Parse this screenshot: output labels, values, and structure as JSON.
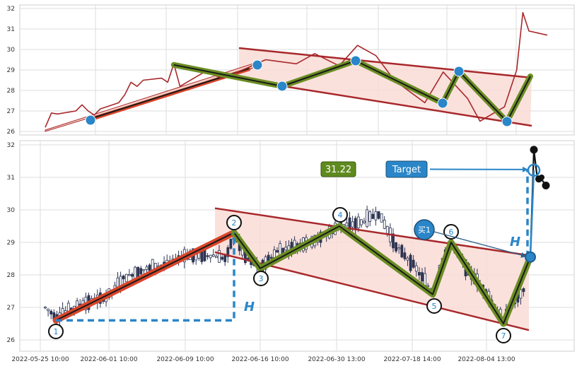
{
  "chart_data": [
    {
      "type": "line",
      "panel": "overview",
      "ylim": [
        26,
        32
      ],
      "y_ticks": [
        "26",
        "27",
        "28",
        "29",
        "30",
        "31",
        "32"
      ],
      "grid": true,
      "series": [
        {
          "role": "close-price",
          "color": "#a8282b",
          "points": [
            [
              "2022-05-25 10:00",
              26.2
            ],
            [
              "2022-05-26",
              26.9
            ],
            [
              "2022-05-27",
              26.85
            ],
            [
              "2022-05-30",
              27.0
            ],
            [
              "2022-05-31",
              27.3
            ],
            [
              "2022-06-01",
              27.0
            ],
            [
              "2022-06-02",
              26.8
            ],
            [
              "2022-06-03",
              27.1
            ],
            [
              "2022-06-06",
              27.4
            ],
            [
              "2022-06-07",
              27.8
            ],
            [
              "2022-06-08",
              28.4
            ],
            [
              "2022-06-09",
              28.2
            ],
            [
              "2022-06-10",
              28.5
            ],
            [
              "2022-06-13",
              28.6
            ],
            [
              "2022-06-14",
              28.4
            ],
            [
              "2022-06-15",
              29.3
            ],
            [
              "2022-06-16",
              28.2
            ],
            [
              "2022-06-20",
              28.9
            ],
            [
              "2022-06-23",
              28.6
            ],
            [
              "2022-06-27",
              29.1
            ],
            [
              "2022-06-30",
              29.5
            ],
            [
              "2022-07-05",
              29.3
            ],
            [
              "2022-07-08",
              29.8
            ],
            [
              "2022-07-12",
              29.2
            ],
            [
              "2022-07-15",
              30.2
            ],
            [
              "2022-07-18",
              29.7
            ],
            [
              "2022-07-21",
              28.5
            ],
            [
              "2022-07-26",
              27.4
            ],
            [
              "2022-07-29",
              28.9
            ],
            [
              "2022-08-02",
              27.6
            ],
            [
              "2022-08-04",
              26.5
            ],
            [
              "2022-08-08",
              27.2
            ],
            [
              "2022-08-10",
              29.0
            ],
            [
              "2022-08-11",
              31.8
            ],
            [
              "2022-08-12",
              30.9
            ],
            [
              "2022-08-15",
              30.7
            ]
          ]
        }
      ],
      "pivots": [
        {
          "id": 1,
          "x": "2022-05-27",
          "y": 26.6
        },
        {
          "id": 2,
          "x": "2022-06-15",
          "y": 29.25
        },
        {
          "id": 3,
          "x": "2022-06-20",
          "y": 28.25
        },
        {
          "id": 4,
          "x": "2022-06-30",
          "y": 29.45
        },
        {
          "id": 5,
          "x": "2022-07-26",
          "y": 27.4
        },
        {
          "id": 6,
          "x": "2022-07-29",
          "y": 28.9
        },
        {
          "id": 7,
          "x": "2022-08-04",
          "y": 26.5
        }
      ]
    },
    {
      "type": "candlestick",
      "panel": "detail",
      "ylim": [
        26,
        32
      ],
      "y_ticks": [
        "26",
        "27",
        "28",
        "29",
        "30",
        "31",
        "32"
      ],
      "x_ticks": [
        "2022-05-25 10:00",
        "2022-06-01 10:00",
        "2022-06-09 10:00",
        "2022-06-16 10:00",
        "2022-06-30 13:00",
        "2022-07-18 14:00",
        "2022-08-04 13:00"
      ],
      "grid": true,
      "candle_color": "#2d3452",
      "pattern_points": [
        {
          "label": "1",
          "y": 26.6
        },
        {
          "label": "2",
          "y": 29.3
        },
        {
          "label": "3",
          "y": 28.2
        },
        {
          "label": "4",
          "y": 29.5
        },
        {
          "label": "5",
          "y": 27.4
        },
        {
          "label": "6",
          "y": 29.0
        },
        {
          "label": "7",
          "y": 26.5
        }
      ],
      "channel": {
        "upper": [
          30.05,
          28.6
        ],
        "lower": [
          28.7,
          26.3
        ]
      },
      "breakout_y": 28.55,
      "target_y": 31.22,
      "target_value_label": "31.22",
      "target_label": "Target",
      "buy_label": "买1",
      "height_label": "H",
      "post_breakout": [
        31.85,
        30.95,
        30.75
      ]
    }
  ],
  "colors": {
    "pole": "#d9452a",
    "channel_line": "#a8282b",
    "channel_fill": "#f9dcd6",
    "zigzag_outer": "#6b8e23",
    "zigzag_inner": "#1a1a1a",
    "marker": "#2a86c8",
    "measure": "#2a86c8",
    "target_box": "#2a86c8",
    "value_box": "#5f8a1e"
  }
}
